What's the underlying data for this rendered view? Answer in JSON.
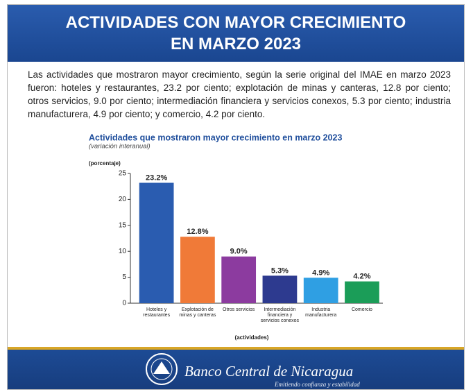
{
  "header": {
    "title_lines": [
      "ACTIVIDADES CON MAYOR CRECIMIENTO",
      "EN MARZO 2023"
    ]
  },
  "paragraph": "Las actividades que mostraron mayor crecimiento, según la serie original del IMAE en marzo 2023 fueron: hoteles y restaurantes, 23.2 por ciento; explotación de minas y canteras, 12.8 por ciento; otros servicios, 9.0 por ciento; intermediación financiera y servicios conexos, 5.3 por ciento; industria manufacturera, 4.9 por ciento; y comercio, 4.2 por ciento.",
  "chart_data": {
    "type": "bar",
    "title": "Actividades que mostraron mayor crecimiento en marzo 2023",
    "subtitle": "(variación interanual)",
    "ylabel": "(porcentaje)",
    "xlabel": "(actividades)",
    "categories": [
      "Hoteles y restaurantes",
      "Explotación de minas y canteras",
      "Otros servicios",
      "Intermediación financiera y servicios conexos",
      "Industria manufacturera",
      "Comercio"
    ],
    "values": [
      23.2,
      12.8,
      9.0,
      5.3,
      4.9,
      4.2
    ],
    "value_labels": [
      "23.2%",
      "12.8%",
      "9.0%",
      "5.3%",
      "4.9%",
      "4.2%"
    ],
    "colors": [
      "#2a5cb0",
      "#f07a38",
      "#8c3b9f",
      "#2d3a8f",
      "#2f9fe3",
      "#1b9d58"
    ],
    "ylim": [
      0,
      25
    ],
    "yticks": [
      0,
      5,
      10,
      15,
      20,
      25
    ]
  },
  "footer": {
    "bank_name": "Banco Central de Nicaragua",
    "motto": "Emitiendo confianza y estabilidad"
  }
}
